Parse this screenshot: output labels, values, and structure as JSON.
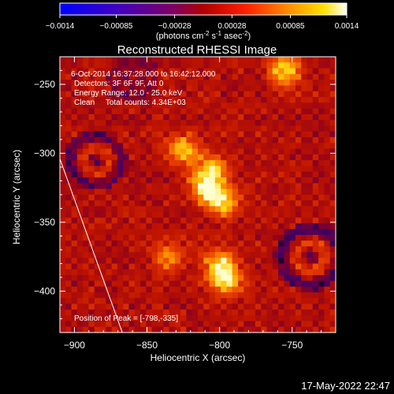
{
  "colorbar": {
    "ticks": [
      "-0.0014",
      "-0.00085",
      "-0.00028",
      "0.00028",
      "0.00085",
      "0.0014"
    ],
    "units_text": "(photons cm",
    "units_sup1": "-2",
    "units_mid1": " s",
    "units_sup2": "-1",
    "units_mid2": " asec",
    "units_sup3": "-2",
    "units_end": ")"
  },
  "image": {
    "title": "Reconstructed RHESSI Image",
    "info_lines": [
      "6-Oct-2014 16:37:28.000 to 16:42:12.000",
      "Detectors: 3F 6F 9F, Att 0",
      "Energy Range: 12.0 - 25.0 keV",
      "Clean     Total counts: 4.34E+03"
    ],
    "peak_label": "Position of Peak = [-798,-335]",
    "timestamp": "17-May-2022 22:47"
  },
  "chart_data": {
    "type": "heatmap",
    "title": "Reconstructed RHESSI Image",
    "xlabel": "Heliocentric X (arcsec)",
    "ylabel": "Heliocentric Y (arcsec)",
    "xlim": [
      -910,
      -720
    ],
    "ylim": [
      -430,
      -230
    ],
    "xticks": [
      -900,
      -850,
      -800,
      -750
    ],
    "yticks": [
      -250,
      -300,
      -350,
      -400
    ],
    "xtick_labels": [
      "−900",
      "−850",
      "−800",
      "−750"
    ],
    "ytick_labels": [
      "−250",
      "−300",
      "−350",
      "−400"
    ],
    "colorscale_range": [
      -0.0014,
      0.0014
    ],
    "peak": {
      "x": -798,
      "y": -335
    },
    "limb_line": [
      [
        -910,
        -304
      ],
      [
        -867,
        -430
      ]
    ],
    "bright_sources": [
      {
        "x": -798,
        "y": -335,
        "intensity": 1.0
      },
      {
        "x": -805,
        "y": -312,
        "intensity": 0.85
      },
      {
        "x": -825,
        "y": -298,
        "intensity": 0.9
      },
      {
        "x": -810,
        "y": -325,
        "intensity": 0.9
      },
      {
        "x": -795,
        "y": -392,
        "intensity": 0.95
      },
      {
        "x": -800,
        "y": -380,
        "intensity": 0.85
      },
      {
        "x": -755,
        "y": -240,
        "intensity": 0.95
      },
      {
        "x": -835,
        "y": -375,
        "intensity": 0.7
      }
    ]
  }
}
